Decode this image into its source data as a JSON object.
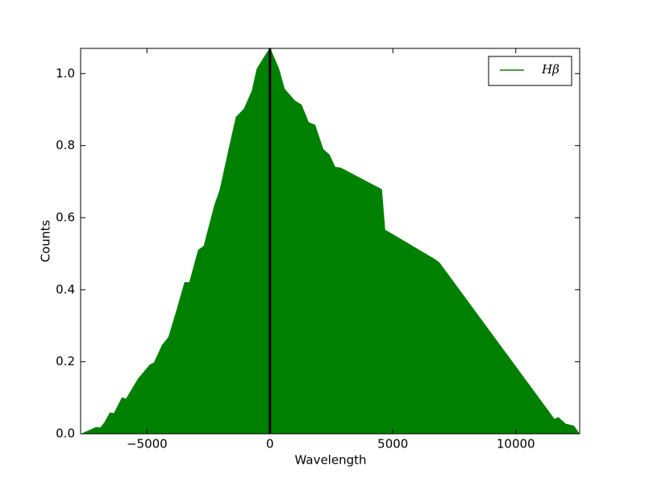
{
  "chart_data": {
    "type": "area",
    "xlabel": "Wavelength",
    "ylabel": "Counts",
    "x": [
      -7647,
      -7059,
      -6895,
      -6732,
      -6503,
      -6340,
      -6013,
      -5850,
      -5359,
      -4869,
      -4706,
      -4379,
      -4118,
      -3791,
      -3464,
      -3268,
      -2908,
      -2680,
      -2255,
      -2026,
      -1667,
      -1373,
      -1046,
      -719,
      -523,
      -261,
      0,
      359,
      588,
      1013,
      1275,
      1569,
      1830,
      2157,
      2418,
      2647,
      2876,
      4542,
      4673,
      6732,
      6895,
      11569,
      11732,
      12026,
      12353,
      12582
    ],
    "series": [
      {
        "name": "Hβ",
        "color": "#008000",
        "values": [
          0,
          0.018,
          0.016,
          0.03,
          0.058,
          0.056,
          0.1,
          0.096,
          0.152,
          0.192,
          0.197,
          0.246,
          0.268,
          0.342,
          0.42,
          0.42,
          0.51,
          0.521,
          0.633,
          0.678,
          0.79,
          0.879,
          0.902,
          0.953,
          1.013,
          1.042,
          1.07,
          1.013,
          0.957,
          0.924,
          0.913,
          0.864,
          0.857,
          0.79,
          0.774,
          0.74,
          0.738,
          0.678,
          0.566,
          0.483,
          0.474,
          0.04,
          0.045,
          0.027,
          0.022,
          0
        ]
      }
    ],
    "vline": {
      "x": 0,
      "color": "#000000"
    },
    "xlim": [
      -7700,
      12600
    ],
    "ylim": [
      0,
      1.07
    ],
    "xticks": [
      {
        "value": -5000,
        "label": "−5000"
      },
      0,
      5000,
      10000
    ],
    "yticks": [
      {
        "value": 0,
        "label": "0.0"
      },
      0.2,
      0.4,
      0.6,
      0.8,
      {
        "value": 1,
        "label": "1.0"
      }
    ],
    "legend": "upper right"
  }
}
